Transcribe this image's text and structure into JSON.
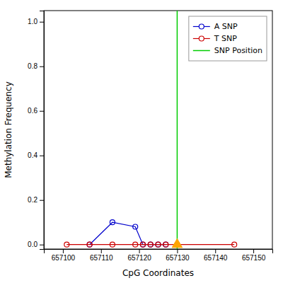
{
  "chart_data": {
    "type": "line",
    "xlabel": "CpG Coordinates",
    "ylabel": "Methylation Frequency",
    "xlim": [
      657095,
      657155
    ],
    "ylim": [
      -0.02,
      1.05
    ],
    "xticks": [
      657100,
      657110,
      657120,
      657130,
      657140,
      657150
    ],
    "yticks": [
      {
        "value": 0.0,
        "label": "0.0"
      },
      {
        "value": 0.2,
        "label": "0.2"
      },
      {
        "value": 0.4,
        "label": "0.4"
      },
      {
        "value": 0.6,
        "label": "0.6"
      },
      {
        "value": 0.8,
        "label": "0.8"
      },
      {
        "value": 1.0,
        "label": "1.0"
      }
    ],
    "grid": false,
    "legend": "upper right",
    "series": [
      {
        "name": "A SNP",
        "type": "line",
        "color": "#0000cc",
        "marker": "open-circle",
        "x": [
          657107,
          657113,
          657119,
          657121,
          657123,
          657125,
          657127
        ],
        "values": [
          0.0,
          0.1,
          0.08,
          0.0,
          0.0,
          0.0,
          0.0
        ]
      },
      {
        "name": "T SNP",
        "type": "line",
        "color": "#cc0000",
        "marker": "open-circle",
        "x": [
          657101,
          657107,
          657113,
          657119,
          657121,
          657123,
          657125,
          657127,
          657130,
          657145
        ],
        "values": [
          0.0,
          0.0,
          0.0,
          0.0,
          0.0,
          0.0,
          0.0,
          0.0,
          0.0,
          0.0
        ]
      },
      {
        "name": "SNP Position",
        "type": "vline",
        "color": "#00cc00",
        "x": [
          657130
        ]
      },
      {
        "type": "scatter",
        "color": "#ffa500",
        "marker": "triangle",
        "x": [
          657130
        ],
        "values": [
          0.0
        ]
      }
    ]
  }
}
